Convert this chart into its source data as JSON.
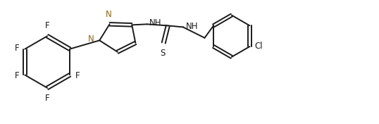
{
  "figure_width": 5.38,
  "figure_height": 1.76,
  "dpi": 100,
  "background_color": "#ffffff",
  "line_color": "#1a1a1a",
  "line_width": 1.4,
  "font_size": 8.5,
  "xlim": [
    0,
    10.5
  ],
  "ylim": [
    0,
    3.2
  ]
}
